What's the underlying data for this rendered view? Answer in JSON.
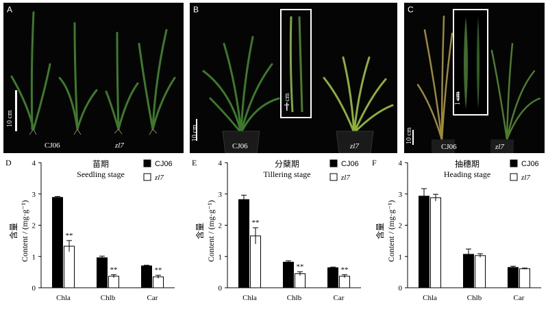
{
  "photos": [
    {
      "letter": "A",
      "labels": [
        "CJ06",
        "zl7"
      ],
      "scale": "10 cm"
    },
    {
      "letter": "B",
      "labels": [
        "CJ06",
        "zl7"
      ],
      "scale": "10 cm",
      "inset_scale": "1 cm"
    },
    {
      "letter": "C",
      "labels": [
        "CJ06",
        "zl7"
      ],
      "scale": "10 cm",
      "inset_scale": "1 cm"
    }
  ],
  "legend": {
    "cj06": "CJ06",
    "zl7": "zl7"
  },
  "colors": {
    "cj06": "#000000",
    "zl7": "#ffffff"
  },
  "chart_data": [
    {
      "letter": "D",
      "type": "bar",
      "title_cn": "苗期",
      "title_en": "Seedling stage",
      "ylabel": "含量",
      "ylabel2": "Content / (mg·g⁻¹)",
      "categories": [
        "Chla",
        "Chlb",
        "Car"
      ],
      "ylim": [
        0,
        4
      ],
      "yticks": [
        "0",
        "1",
        "2",
        "3",
        "4"
      ],
      "series": [
        {
          "name": "CJ06",
          "values": [
            2.89,
            0.96,
            0.7
          ],
          "errors": [
            0.03,
            0.05,
            0.02
          ]
        },
        {
          "name": "zl7",
          "values": [
            1.33,
            0.37,
            0.35
          ],
          "errors": [
            0.18,
            0.05,
            0.05
          ],
          "sig": [
            "**",
            "**",
            "**"
          ]
        }
      ]
    },
    {
      "letter": "E",
      "type": "bar",
      "title_cn": "分蘖期",
      "title_en": "Tillering stage",
      "ylabel": "含量",
      "ylabel2": "Content / (mg·g⁻¹)",
      "categories": [
        "Chla",
        "Chlb",
        "Car"
      ],
      "ylim": [
        0,
        4
      ],
      "yticks": [
        "0",
        "1",
        "2",
        "3",
        "4"
      ],
      "series": [
        {
          "name": "CJ06",
          "values": [
            2.82,
            0.82,
            0.64
          ],
          "errors": [
            0.14,
            0.04,
            0.02
          ]
        },
        {
          "name": "zl7",
          "values": [
            1.66,
            0.45,
            0.37
          ],
          "errors": [
            0.26,
            0.06,
            0.05
          ],
          "sig": [
            "**",
            "**",
            "**"
          ]
        }
      ]
    },
    {
      "letter": "F",
      "type": "bar",
      "title_cn": "抽穗期",
      "title_en": "Heading stage",
      "ylabel": "含量",
      "ylabel2": "Content / (mg·g⁻¹)",
      "categories": [
        "Chla",
        "Chlb",
        "Car"
      ],
      "ylim": [
        0,
        4
      ],
      "yticks": [
        "0",
        "1",
        "2",
        "3",
        "4"
      ],
      "series": [
        {
          "name": "CJ06",
          "values": [
            2.93,
            1.07,
            0.65
          ],
          "errors": [
            0.24,
            0.17,
            0.04
          ]
        },
        {
          "name": "zl7",
          "values": [
            2.88,
            1.03,
            0.61
          ],
          "errors": [
            0.11,
            0.06,
            0.02
          ]
        }
      ]
    }
  ]
}
